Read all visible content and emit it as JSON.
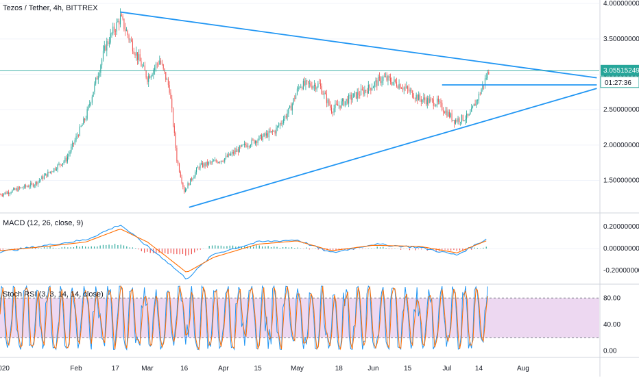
{
  "colors": {
    "background": "#ffffff",
    "up": "#26a69a",
    "down": "#ef5350",
    "trendline": "#2196f3",
    "price_line": "#26a69a",
    "macd_line": "#2196f3",
    "signal_line": "#ff6d00",
    "rsi_k": "#2196f3",
    "rsi_d": "#ff6d00",
    "rsi_band": "#e1bee7",
    "grid": "#f0f3fa",
    "axis_text": "#131722"
  },
  "chart_data": [
    {
      "type": "candlestick",
      "title": "Tezos / Tether, 4h, BITTREX",
      "y_ticks": [
        "4.00000000",
        "3.50000000",
        "3.00000000",
        "2.50000000",
        "2.00000000",
        "1.50000000"
      ],
      "y_range": [
        1.05,
        4.05
      ],
      "last_price": "3.05515249",
      "countdown": "01:27:36",
      "x_labels": [
        "2020",
        "Feb",
        "17",
        "Mar",
        "16",
        "Apr",
        "15",
        "May",
        "18",
        "Jun",
        "15",
        "Jul",
        "14",
        "Aug"
      ],
      "price_path": [
        {
          "date": "2020-01-01",
          "value": 1.3
        },
        {
          "date": "2020-01-15",
          "value": 1.45
        },
        {
          "date": "2020-01-28",
          "value": 1.8
        },
        {
          "date": "2020-02-05",
          "value": 2.4
        },
        {
          "date": "2020-02-13",
          "value": 3.4
        },
        {
          "date": "2020-02-19",
          "value": 3.8
        },
        {
          "date": "2020-02-24",
          "value": 3.4
        },
        {
          "date": "2020-03-01",
          "value": 2.95
        },
        {
          "date": "2020-03-06",
          "value": 3.2
        },
        {
          "date": "2020-03-10",
          "value": 2.8
        },
        {
          "date": "2020-03-13",
          "value": 1.8
        },
        {
          "date": "2020-03-16",
          "value": 1.35
        },
        {
          "date": "2020-03-22",
          "value": 1.7
        },
        {
          "date": "2020-04-01",
          "value": 1.8
        },
        {
          "date": "2020-04-10",
          "value": 2.0
        },
        {
          "date": "2020-04-22",
          "value": 2.2
        },
        {
          "date": "2020-04-28",
          "value": 2.5
        },
        {
          "date": "2020-05-02",
          "value": 2.85
        },
        {
          "date": "2020-05-10",
          "value": 2.85
        },
        {
          "date": "2020-05-15",
          "value": 2.5
        },
        {
          "date": "2020-05-22",
          "value": 2.65
        },
        {
          "date": "2020-05-30",
          "value": 2.8
        },
        {
          "date": "2020-06-05",
          "value": 2.95
        },
        {
          "date": "2020-06-12",
          "value": 2.85
        },
        {
          "date": "2020-06-20",
          "value": 2.65
        },
        {
          "date": "2020-06-27",
          "value": 2.6
        },
        {
          "date": "2020-07-04",
          "value": 2.35
        },
        {
          "date": "2020-07-10",
          "value": 2.4
        },
        {
          "date": "2020-07-14",
          "value": 2.7
        },
        {
          "date": "2020-07-18",
          "value": 3.05
        }
      ],
      "trendlines": [
        {
          "name": "descending resistance",
          "from": {
            "date": "2020-02-19",
            "value": 3.88
          },
          "to": {
            "date": "2020-08-31",
            "value": 2.95
          }
        },
        {
          "name": "ascending support",
          "from": {
            "date": "2020-03-18",
            "value": 1.12
          },
          "to": {
            "date": "2020-08-31",
            "value": 2.8
          }
        },
        {
          "name": "horizontal level",
          "from": {
            "date": "2020-06-29",
            "value": 2.85
          },
          "to": {
            "date": "2020-08-31",
            "value": 2.85
          }
        }
      ]
    },
    {
      "type": "line",
      "title": "MACD (12, 26, close, 9)",
      "y_ticks": [
        "0.20000000",
        "0.00000000",
        "-0.20000000"
      ],
      "y_range": [
        -0.32,
        0.32
      ],
      "series": [
        {
          "key": "macd",
          "values": [
            {
              "date": "2020-01-01",
              "value": -0.03
            },
            {
              "date": "2020-01-20",
              "value": 0.03
            },
            {
              "date": "2020-02-05",
              "value": 0.08
            },
            {
              "date": "2020-02-19",
              "value": 0.22
            },
            {
              "date": "2020-03-01",
              "value": 0.02
            },
            {
              "date": "2020-03-08",
              "value": -0.1
            },
            {
              "date": "2020-03-17",
              "value": -0.28
            },
            {
              "date": "2020-03-28",
              "value": -0.05
            },
            {
              "date": "2020-04-15",
              "value": 0.06
            },
            {
              "date": "2020-05-01",
              "value": 0.08
            },
            {
              "date": "2020-05-15",
              "value": -0.04
            },
            {
              "date": "2020-06-01",
              "value": 0.04
            },
            {
              "date": "2020-06-20",
              "value": 0.01
            },
            {
              "date": "2020-07-05",
              "value": -0.06
            },
            {
              "date": "2020-07-18",
              "value": 0.1
            }
          ]
        },
        {
          "key": "signal",
          "values": [
            {
              "date": "2020-01-01",
              "value": -0.02
            },
            {
              "date": "2020-01-20",
              "value": 0.02
            },
            {
              "date": "2020-02-05",
              "value": 0.06
            },
            {
              "date": "2020-02-19",
              "value": 0.18
            },
            {
              "date": "2020-03-01",
              "value": 0.06
            },
            {
              "date": "2020-03-08",
              "value": -0.06
            },
            {
              "date": "2020-03-17",
              "value": -0.22
            },
            {
              "date": "2020-03-28",
              "value": -0.08
            },
            {
              "date": "2020-04-15",
              "value": 0.04
            },
            {
              "date": "2020-05-01",
              "value": 0.07
            },
            {
              "date": "2020-05-15",
              "value": -0.02
            },
            {
              "date": "2020-06-01",
              "value": 0.03
            },
            {
              "date": "2020-06-20",
              "value": 0.02
            },
            {
              "date": "2020-07-05",
              "value": -0.04
            },
            {
              "date": "2020-07-18",
              "value": 0.08
            }
          ]
        }
      ]
    },
    {
      "type": "line",
      "title": "Stoch RSI (3, 3, 14, 14, close)",
      "y_ticks": [
        "80.00",
        "40.00",
        "0.00"
      ],
      "y_range": [
        -10,
        100
      ],
      "band": [
        20,
        80
      ]
    }
  ]
}
